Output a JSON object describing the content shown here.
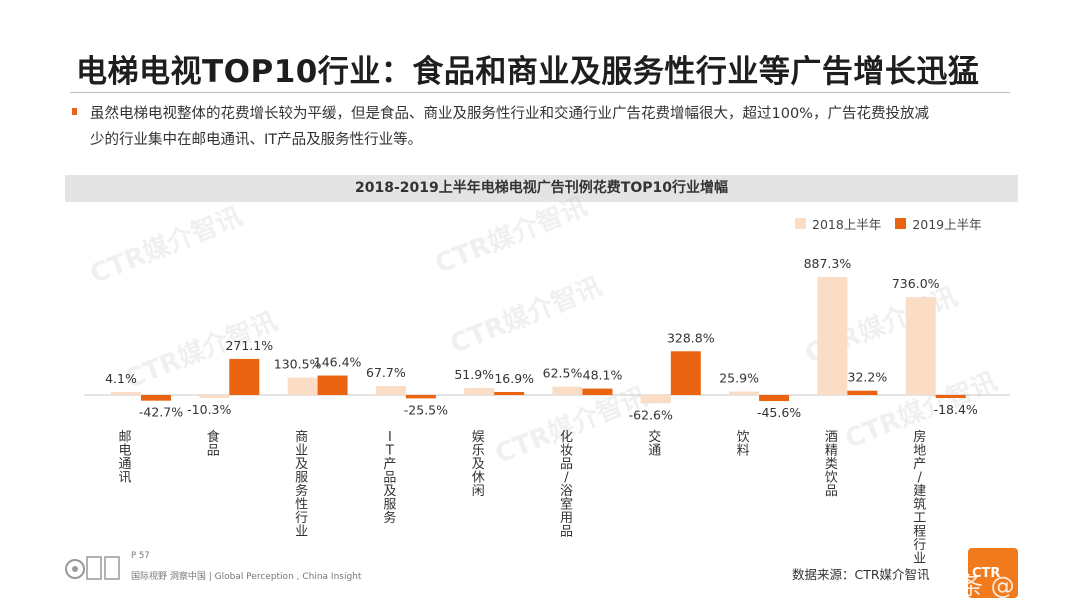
{
  "slide": {
    "title": "电梯电视TOP10行业：食品和商业及服务性行业等广告增长迅猛",
    "bullet_line1": "虽然电梯电视整体的花费增长较为平缓，但是食品、商业及服务性行业和交通行业广告花费增幅很大，超过100%，广告花费投放减",
    "bullet_line2": "少的行业集中在邮电通讯、IT产品及服务性行业等。"
  },
  "chart_data": {
    "type": "bar",
    "title": "2018-2019上半年电梯电视广告刊例花费TOP10行业增幅",
    "categories": [
      "邮电通讯",
      "食品",
      "商业及服务性行业",
      "IT产品及服务",
      "娱乐及休闲",
      "化妆品/浴室用品",
      "交通",
      "饮料",
      "酒精类饮品",
      "房地产/建筑工程行业"
    ],
    "series": [
      {
        "name": "2018上半年",
        "color": "#fbdcc5",
        "values": [
          4.1,
          -10.3,
          130.5,
          67.7,
          51.9,
          62.5,
          -62.6,
          25.9,
          887.3,
          736.0
        ],
        "labels": [
          "4.1%",
          "-10.3%",
          "130.5%",
          "67.7%",
          "51.9%",
          "62.5%",
          "-62.6%",
          "25.9%",
          "887.3%",
          "736.0%"
        ]
      },
      {
        "name": "2019上半年",
        "color": "#ea6311",
        "values": [
          -42.7,
          271.1,
          146.4,
          -25.5,
          16.9,
          48.1,
          328.8,
          -45.6,
          32.2,
          -18.4
        ],
        "labels": [
          "-42.7%",
          "271.1%",
          "146.4%",
          "-25.5%",
          "16.9%",
          "48.1%",
          "328.8%",
          "-45.6%",
          "32.2%",
          "-18.4%"
        ]
      }
    ],
    "legend_position": "top-right",
    "grid": false
  },
  "watermark_text": "CTR媒介智讯",
  "footer": {
    "page": "P 57",
    "tagline": "国际视野 洞察中国 | Global Perception , China Insight",
    "source": "数据来源：CTR媒介智讯",
    "brand": "CTR",
    "overlay_watermark": "头条 @ 火火财经"
  }
}
